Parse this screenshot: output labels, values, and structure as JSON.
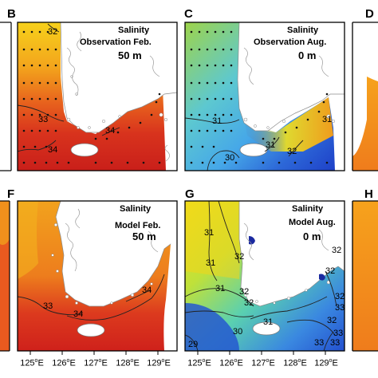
{
  "panels": [
    {
      "id": "B",
      "title_line1": "Salinity",
      "title_line2": "Observation Feb.",
      "depth": "50 m",
      "palette": "red",
      "has_stations": true,
      "contours": [
        "32",
        "33",
        "34",
        "34"
      ]
    },
    {
      "id": "C",
      "title_line1": "Salinity",
      "title_line2": "Observation Aug.",
      "depth": "0 m",
      "palette": "multi",
      "has_stations": true,
      "contours": [
        "31",
        "31",
        "30",
        "32",
        "31"
      ]
    },
    {
      "id": "D",
      "partial": true,
      "palette": "orange"
    },
    {
      "id": "F",
      "title_line1": "Salinity",
      "title_line2": "Model Feb.",
      "depth": "50 m",
      "palette": "red",
      "contours": [
        "33",
        "34",
        "34"
      ]
    },
    {
      "id": "G",
      "title_line1": "Salinity",
      "title_line2": "Model Aug.",
      "depth": "0 m",
      "palette": "multi",
      "contours": [
        "31",
        "32",
        "31",
        "31",
        "32",
        "32",
        "32",
        "32",
        "32",
        "33",
        "32",
        "30",
        "31",
        "33",
        "33",
        "29",
        "33"
      ]
    },
    {
      "id": "H",
      "partial": true,
      "palette": "orange"
    }
  ],
  "x_axis_ticks": [
    {
      "num": "125",
      "unit": "o",
      "hemi": "E"
    },
    {
      "num": "126",
      "unit": "o",
      "hemi": "E"
    },
    {
      "num": "127",
      "unit": "o",
      "hemi": "E"
    },
    {
      "num": "128",
      "unit": "o",
      "hemi": "E"
    },
    {
      "num": "129",
      "unit": "o",
      "hemi": "E"
    },
    {
      "num": "125",
      "unit": "o",
      "hemi": "E"
    },
    {
      "num": "126",
      "unit": "o",
      "hemi": "E"
    },
    {
      "num": "127",
      "unit": "o",
      "hemi": "E"
    },
    {
      "num": "128",
      "unit": "o",
      "hemi": "E"
    },
    {
      "num": "129",
      "unit": "o",
      "hemi": "E"
    }
  ],
  "colors": {
    "red_sea": "#d83a1e",
    "orange_sea": "#f08a1c",
    "yellow_sea": "#f2c81c",
    "green_sea": "#9cd048",
    "cyan_sea": "#5fc8e0",
    "blue_sea": "#3a7fd8",
    "land": "#ffffff",
    "coast": "#7a7a7a",
    "contour": "#333333"
  }
}
